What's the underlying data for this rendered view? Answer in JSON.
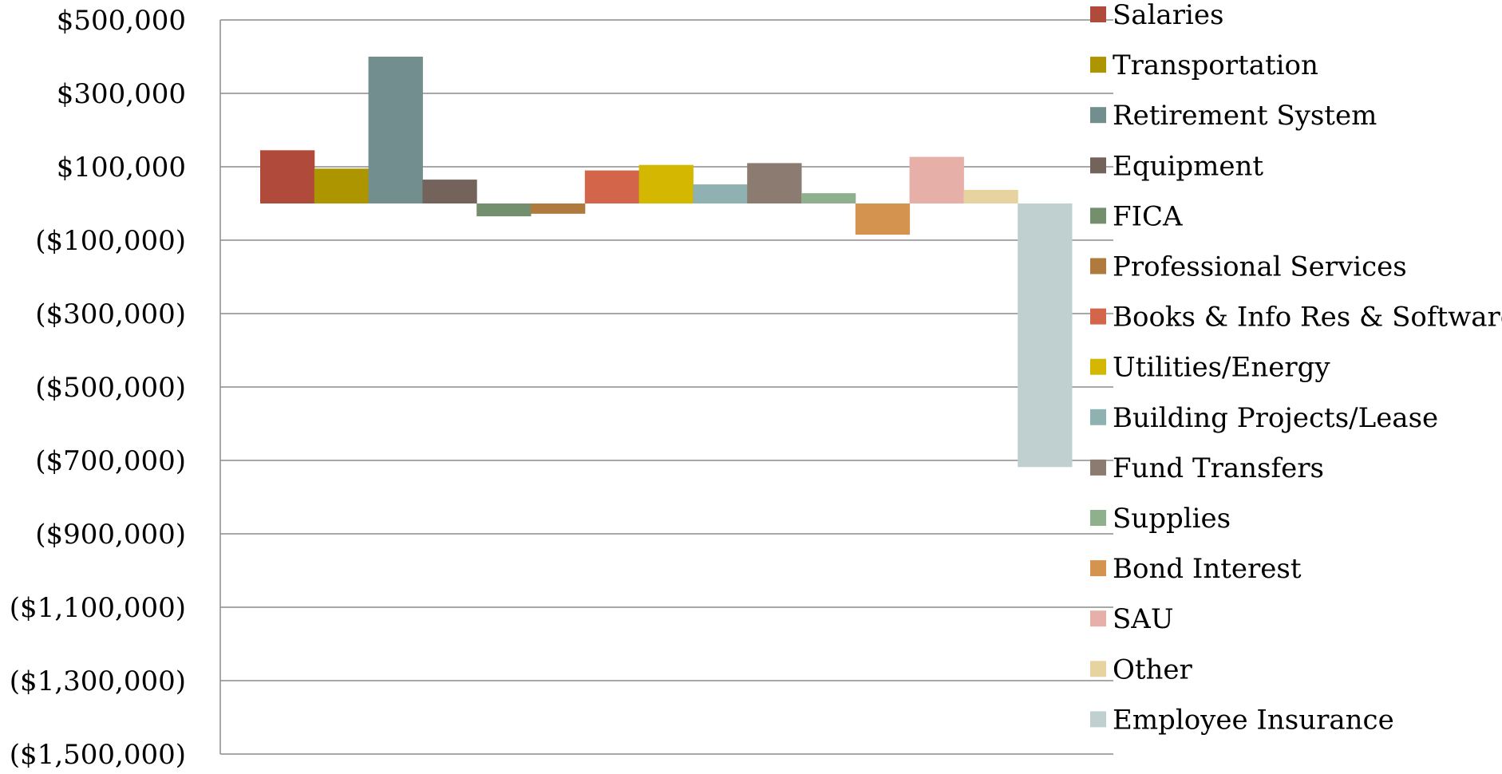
{
  "chart_data": {
    "type": "bar",
    "title": "",
    "xlabel": "",
    "ylabel": "",
    "ylim": [
      -1500000,
      500000
    ],
    "y_ticks": [
      500000,
      300000,
      100000,
      -100000,
      -300000,
      -500000,
      -700000,
      -900000,
      -1100000,
      -1300000,
      -1500000
    ],
    "y_tick_labels": [
      "$500,000",
      "$300,000",
      "$100,000",
      "($100,000)",
      "($300,000)",
      "($500,000)",
      "($700,000)",
      "($900,000)",
      "($1,100,000)",
      "($1,300,000)",
      "($1,500,000)"
    ],
    "grid": true,
    "legend_position": "right",
    "categories": [
      ""
    ],
    "series": [
      {
        "name": "Salaries",
        "values": [
          145000
        ],
        "color": "#b04a3a"
      },
      {
        "name": "Transportation",
        "values": [
          95000
        ],
        "color": "#ad9500"
      },
      {
        "name": "Retirement System",
        "values": [
          400000
        ],
        "color": "#728e8e"
      },
      {
        "name": "Equipment",
        "values": [
          65000
        ],
        "color": "#73635a"
      },
      {
        "name": "FICA",
        "values": [
          -35000
        ],
        "color": "#738f6e"
      },
      {
        "name": "Professional Services",
        "values": [
          -28000
        ],
        "color": "#b07a3e"
      },
      {
        "name": "Books & Info Res & Software",
        "values": [
          90000
        ],
        "color": "#d2654a"
      },
      {
        "name": "Utilities/Energy",
        "values": [
          105000
        ],
        "color": "#d4b700"
      },
      {
        "name": "Building Projects/Lease",
        "values": [
          52000
        ],
        "color": "#8fb1b1"
      },
      {
        "name": "Fund Transfers",
        "values": [
          110000
        ],
        "color": "#8c7b70"
      },
      {
        "name": "Supplies",
        "values": [
          28000
        ],
        "color": "#8fb08c"
      },
      {
        "name": "Bond Interest",
        "values": [
          -85000
        ],
        "color": "#d49450"
      },
      {
        "name": "SAU",
        "values": [
          127000
        ],
        "color": "#e6b0a8"
      },
      {
        "name": "Other",
        "values": [
          37000
        ],
        "color": "#e6d3a0"
      },
      {
        "name": "Employee Insurance",
        "values": [
          -718000
        ],
        "color": "#c0d0d0"
      }
    ]
  }
}
